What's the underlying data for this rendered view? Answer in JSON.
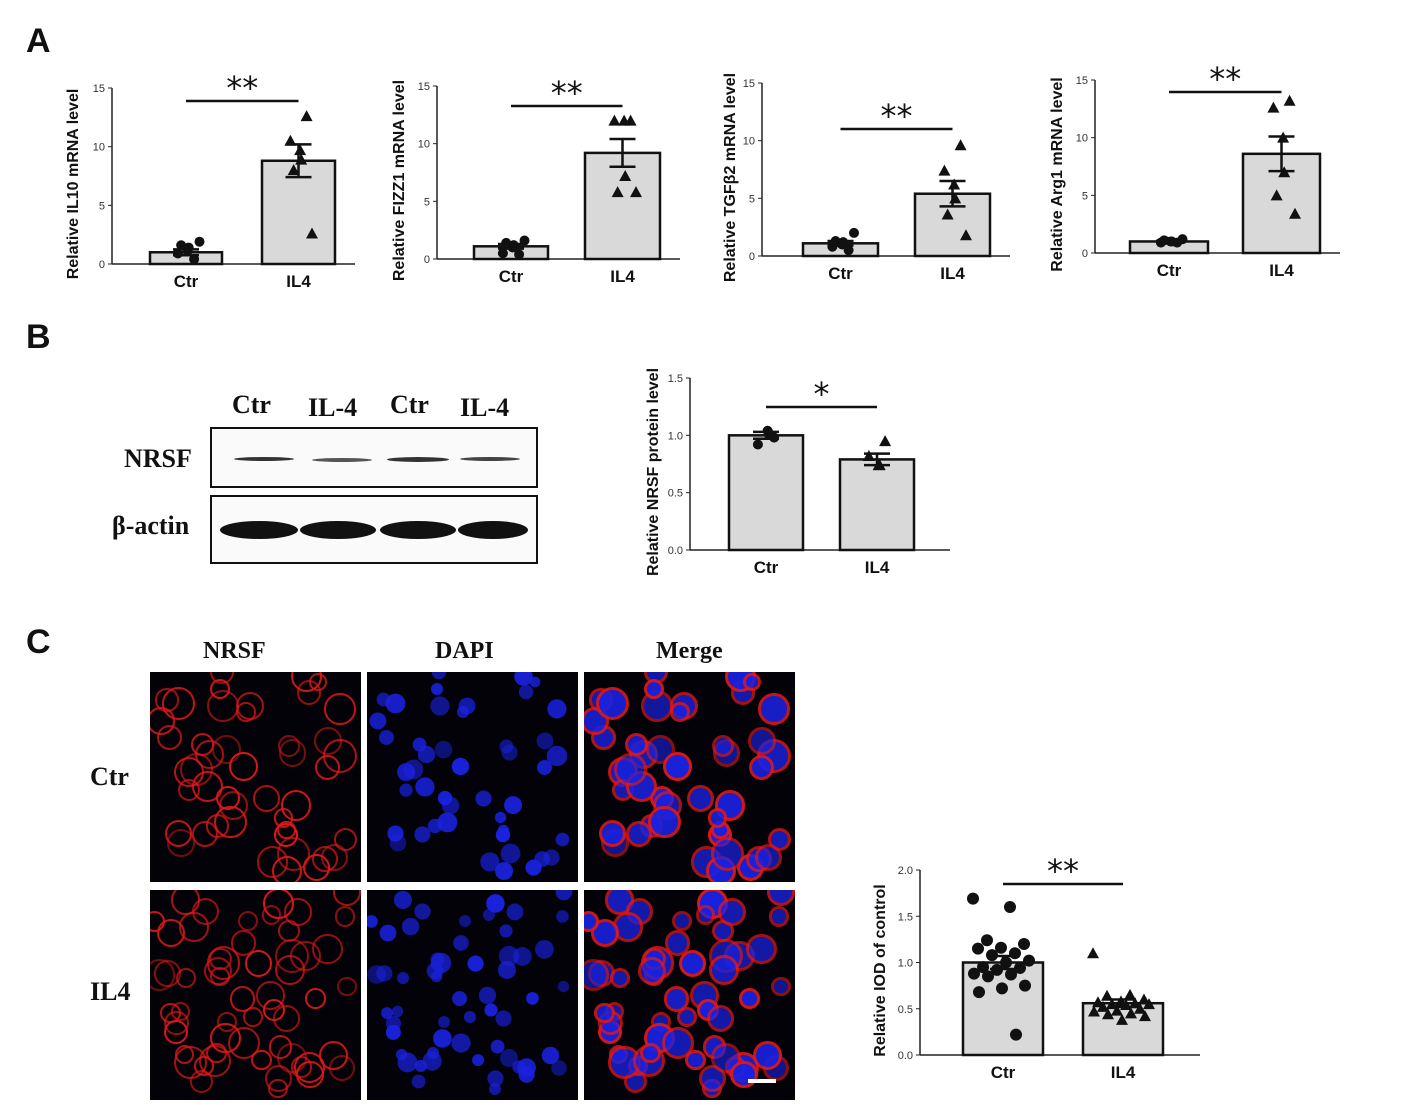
{
  "panel_letters": [
    "A",
    "B",
    "C"
  ],
  "western_blot": {
    "lanes": [
      "Ctr",
      "IL-4",
      "Ctr",
      "IL-4"
    ],
    "rows": [
      "NRSF",
      "β-actin"
    ]
  },
  "immunofluorescence": {
    "columns": [
      "NRSF",
      "DAPI",
      "Merge"
    ],
    "rows": [
      "Ctr",
      "IL4"
    ],
    "colors": {
      "NRSF": "#e01818",
      "DAPI": "#1a22e0"
    }
  },
  "chart_data": [
    {
      "type": "bar",
      "ylabel": "Relative IL10 mRNA level",
      "categories": [
        "Ctr",
        "IL4"
      ],
      "ylim": [
        0,
        15
      ],
      "yticks": [
        "0",
        "5",
        "10",
        "15"
      ],
      "means": [
        1.0,
        8.8
      ],
      "sem": [
        0.25,
        1.4
      ],
      "points": [
        [
          0.4,
          0.9,
          1.1,
          1.4,
          1.6,
          1.9
        ],
        [
          12.6,
          10.5,
          9.7,
          8.9,
          8.0,
          2.6
        ]
      ],
      "significance": "**"
    },
    {
      "type": "bar",
      "ylabel": "Relative FIZZ1 mRNA level",
      "categories": [
        "Ctr",
        "IL4"
      ],
      "ylim": [
        0,
        15
      ],
      "yticks": [
        "0",
        "5",
        "10",
        "15"
      ],
      "means": [
        1.1,
        9.2
      ],
      "sem": [
        0.2,
        1.2
      ],
      "points": [
        [
          0.4,
          0.5,
          1.0,
          1.2,
          1.4,
          1.6
        ],
        [
          12.0,
          12.0,
          12.0,
          7.2,
          5.8,
          5.8
        ]
      ],
      "significance": "**"
    },
    {
      "type": "bar",
      "ylabel": "Relative TGFβ2 mRNA level",
      "categories": [
        "Ctr",
        "IL4"
      ],
      "ylim": [
        0,
        15
      ],
      "yticks": [
        "0",
        "5",
        "10",
        "15"
      ],
      "means": [
        1.1,
        5.4
      ],
      "sem": [
        0.2,
        1.1
      ],
      "points": [
        [
          0.5,
          0.8,
          1.0,
          1.2,
          1.3,
          2.0
        ],
        [
          9.6,
          7.4,
          6.2,
          5.0,
          3.6,
          1.8
        ]
      ],
      "significance": "**"
    },
    {
      "type": "bar",
      "ylabel": "Relative Arg1 mRNA level",
      "categories": [
        "Ctr",
        "IL4"
      ],
      "ylim": [
        0,
        15
      ],
      "yticks": [
        "0",
        "5",
        "10",
        "15"
      ],
      "means": [
        1.0,
        8.6
      ],
      "sem": [
        0.05,
        1.5
      ],
      "points": [
        [
          0.9,
          0.9,
          1.0,
          1.0,
          1.1,
          1.2
        ],
        [
          13.2,
          12.6,
          10.0,
          7.0,
          5.0,
          3.4
        ]
      ],
      "significance": "**"
    },
    {
      "type": "bar",
      "ylabel": "Relative NRSF protein level",
      "categories": [
        "Ctr",
        "IL4"
      ],
      "ylim": [
        0,
        1.5
      ],
      "yticks": [
        "0.0",
        "0.5",
        "1.0",
        "1.5"
      ],
      "means": [
        1.0,
        0.79
      ],
      "sem": [
        0.03,
        0.05
      ],
      "points": [
        [
          0.98,
          0.92,
          1.04,
          1.02
        ],
        [
          0.95,
          0.82,
          0.74,
          0.74
        ]
      ],
      "significance": "*"
    },
    {
      "type": "bar",
      "ylabel": "Relative IOD of control",
      "categories": [
        "Ctr",
        "IL4"
      ],
      "ylim": [
        0,
        2.0
      ],
      "yticks": [
        "0.0",
        "0.5",
        "1.0",
        "1.5",
        "2.0"
      ],
      "means": [
        1.0,
        0.56
      ],
      "sem": [
        0.07,
        0.04
      ],
      "points": [
        [
          1.69,
          1.6,
          1.24,
          1.2,
          1.16,
          1.15,
          1.1,
          1.08,
          1.02,
          1.0,
          0.95,
          0.94,
          0.92,
          0.88,
          0.87,
          0.85,
          0.75,
          0.72,
          0.68,
          0.22
        ],
        [
          1.1,
          0.65,
          0.64,
          0.6,
          0.58,
          0.57,
          0.56,
          0.55,
          0.55,
          0.54,
          0.52,
          0.5,
          0.48,
          0.47,
          0.45,
          0.44,
          0.42,
          0.38
        ]
      ],
      "significance": "**"
    }
  ]
}
